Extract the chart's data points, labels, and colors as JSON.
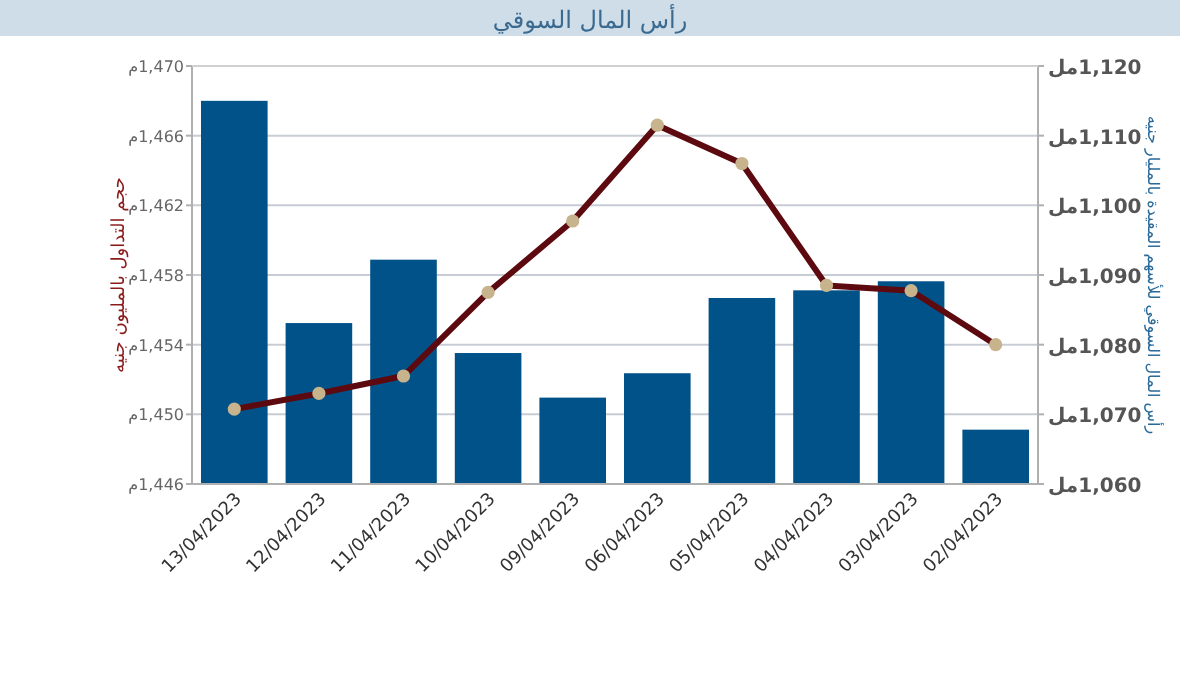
{
  "chart_data": {
    "type": "bar",
    "title": "رأس المال السوقي",
    "ylabel": "حجم التداول بالمليون جنيه",
    "y2label": "رأس المال السوقي للأسهم المقيدة بالمليار جنيه",
    "categories": [
      "13/04/2023",
      "12/04/2023",
      "11/04/2023",
      "10/04/2023",
      "09/04/2023",
      "06/04/2023",
      "05/04/2023",
      "04/04/2023",
      "03/04/2023",
      "02/04/2023"
    ],
    "series": [
      {
        "axis": "y2",
        "color": "#005288",
        "values": [
          1115.0,
          1083.1,
          1092.2,
          1078.8,
          1072.4,
          1075.9,
          1086.7,
          1087.8,
          1089.1,
          1067.8
        ]
      },
      {
        "type": "line",
        "axis": "y",
        "color": "#5c0a0f",
        "marker": "circle",
        "values": [
          1450.3,
          1451.2,
          1452.2,
          1457.0,
          1461.1,
          1466.6,
          1464.4,
          1457.4,
          1457.1,
          1454.0
        ]
      }
    ],
    "ylim": [
      1446,
      1470
    ],
    "yticks": [
      {
        "value": 1446,
        "label": "1,446م"
      },
      {
        "value": 1450,
        "label": "1,450م"
      },
      {
        "value": 1454,
        "label": "1,454م"
      },
      {
        "value": 1458,
        "label": "1,458م"
      },
      {
        "value": 1462,
        "label": "1,462م"
      },
      {
        "value": 1466,
        "label": "1,466م"
      },
      {
        "value": 1470,
        "label": "1,470م"
      }
    ],
    "y2lim": [
      1060,
      1120
    ],
    "y2ticks": [
      {
        "value": 1060,
        "label": "1,060مل"
      },
      {
        "value": 1070,
        "label": "1,070مل"
      },
      {
        "value": 1080,
        "label": "1,080مل"
      },
      {
        "value": 1090,
        "label": "1,090مل"
      },
      {
        "value": 1100,
        "label": "1,100مل"
      },
      {
        "value": 1110,
        "label": "1,110مل"
      },
      {
        "value": 1120,
        "label": "1,120مل"
      }
    ],
    "grid": "y"
  }
}
